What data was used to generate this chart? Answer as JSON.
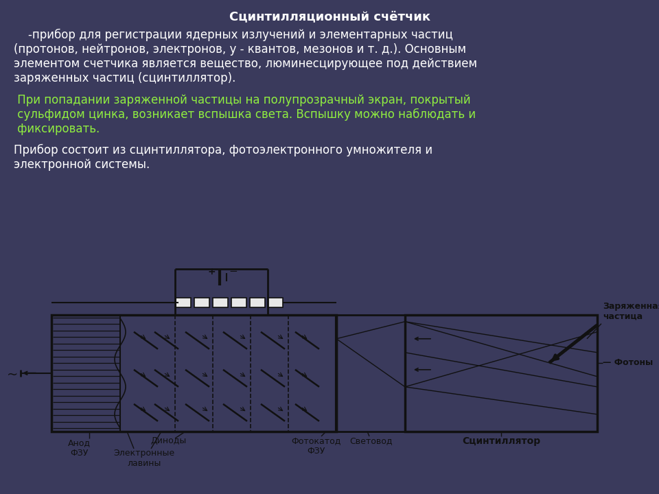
{
  "bg_top_color": "#3a3a5c",
  "bg_bottom_color": "#e8e8e8",
  "title": "Сцинтилляционный счётчик",
  "title_color": "#ffffff",
  "title_fontsize": 13,
  "para1_line1": "    -прибор для регистрации ядерных излучений и элементарных частиц",
  "para1_line2": "(протонов, нейтронов, электронов, у - квантов, мезонов и т. д.). Основным",
  "para1_line3": "элементом счетчика является вещество, люминесцирующее под действием",
  "para1_line4": "заряженных частиц (сцинтиллятор).",
  "para1_color": "#ffffff",
  "para1_fontsize": 12,
  "para2_line1": " При попадании заряженной частицы на полупрозрачный экран, покрытый",
  "para2_line2": " сульфидом цинка, возникает вспышка света. Вспышку можно наблюдать и",
  "para2_line3": " фиксировать.",
  "para2_color": "#90ee40",
  "para2_fontsize": 12,
  "para3_line1": "Прибор состоит из сцинтиллятора, фотоэлектронного умножителя и",
  "para3_line2": "электронной системы.",
  "para3_color": "#ffffff",
  "para3_fontsize": 12,
  "diagram_bg": "#e8e8e8",
  "label_zaryazhennaya": "Заряженная\nчастица",
  "label_fotony": "Фотоны",
  "label_anod": "Анод\nФЗУ",
  "label_dinody": "Диноды",
  "label_elektronnye": "Электронные\nлавины",
  "label_fotokатод": "Фотокатод\nФЗУ",
  "label_svetovod": "Световод",
  "label_scintilyator": "Сцинтиллятор"
}
